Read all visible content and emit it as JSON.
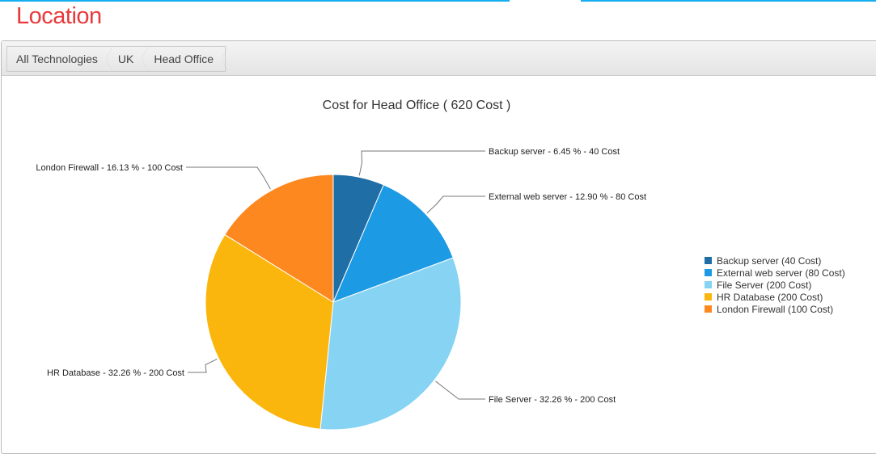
{
  "page": {
    "title": "Location"
  },
  "breadcrumb": [
    "All Technologies",
    "UK",
    "Head Office"
  ],
  "chart_data": {
    "type": "pie",
    "title": "Cost for Head Office ( 620 Cost )",
    "slices": [
      {
        "name": "Backup server",
        "value": 40,
        "percent": "6.45",
        "color": "#1f6fa6",
        "label": "Backup server - 6.45 % - 40 Cost",
        "legend": "Backup server (40 Cost)"
      },
      {
        "name": "External web server",
        "value": 80,
        "percent": "12.90",
        "color": "#1c9ae4",
        "label": "External web server - 12.90 % - 80 Cost",
        "legend": "External web server (80 Cost)"
      },
      {
        "name": "File Server",
        "value": 200,
        "percent": "32.26",
        "color": "#86d3f4",
        "label": "File Server - 32.26 % - 200 Cost",
        "legend": "File Server (200 Cost)"
      },
      {
        "name": "HR Database",
        "value": 200,
        "percent": "32.26",
        "color": "#fbb60e",
        "label": "HR Database - 32.26 % - 200 Cost",
        "legend": "HR Database (200 Cost)"
      },
      {
        "name": "London Firewall",
        "value": 100,
        "percent": "16.13",
        "color": "#fd8820",
        "label": "London Firewall - 16.13 % - 100 Cost",
        "legend": "London Firewall (100 Cost)"
      }
    ],
    "legend_position": "right"
  }
}
